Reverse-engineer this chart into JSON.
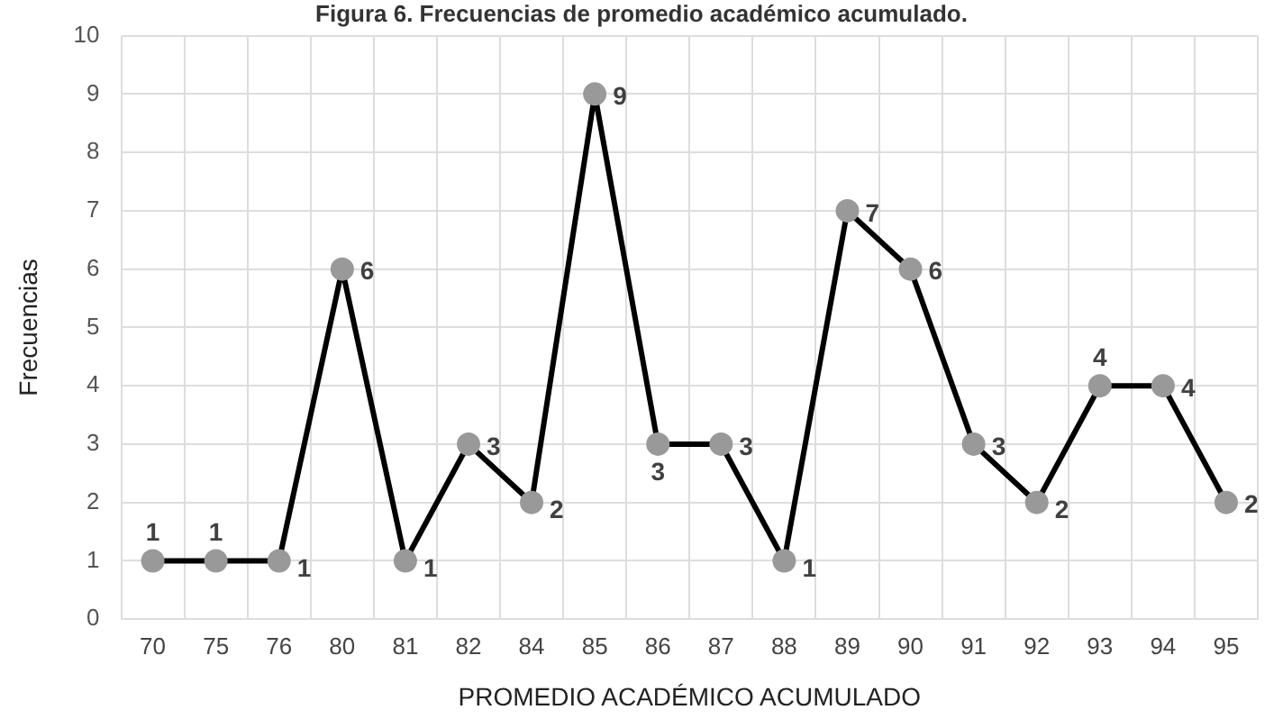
{
  "chart_data": {
    "type": "line",
    "title": "Figura 6. Frecuencias de promedio académico acumulado.",
    "xlabel": "PROMEDIO ACADÉMICO ACUMULADO",
    "ylabel": "Frecuencias",
    "categories": [
      "70",
      "75",
      "76",
      "80",
      "81",
      "82",
      "84",
      "85",
      "86",
      "87",
      "88",
      "89",
      "90",
      "91",
      "92",
      "93",
      "94",
      "95"
    ],
    "series": [
      {
        "color": "#000000",
        "values": [
          1,
          1,
          1,
          6,
          1,
          3,
          2,
          9,
          3,
          3,
          1,
          7,
          6,
          3,
          2,
          4,
          4,
          2
        ]
      }
    ],
    "ylim": [
      0,
      10
    ],
    "yticks": [
      0,
      1,
      2,
      3,
      4,
      5,
      6,
      7,
      8,
      9,
      10
    ],
    "grid": true,
    "legend": false,
    "marker": "circle",
    "line_style": "solid",
    "data_labels": true
  }
}
